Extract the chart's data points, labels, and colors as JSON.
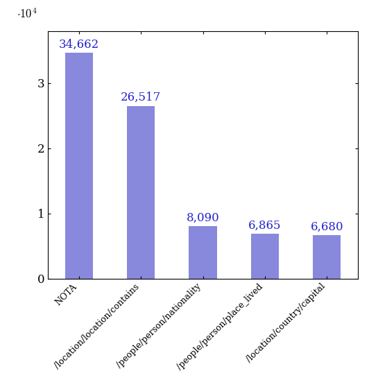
{
  "categories": [
    "NOTA",
    "/location/location/contains",
    "/people/person/nationality",
    "/people/person/place_lived",
    "/location/country/capital"
  ],
  "values": [
    34662,
    26517,
    8090,
    6865,
    6680
  ],
  "bar_color": "#8888dd",
  "label_color": "#2222cc",
  "label_fontsize": 12,
  "tick_label_fontsize": 9,
  "ytick_fontsize": 12,
  "ylim": [
    0,
    38000
  ],
  "value_labels": [
    "34,662",
    "26,517",
    "8,090",
    "6,865",
    "6,680"
  ]
}
